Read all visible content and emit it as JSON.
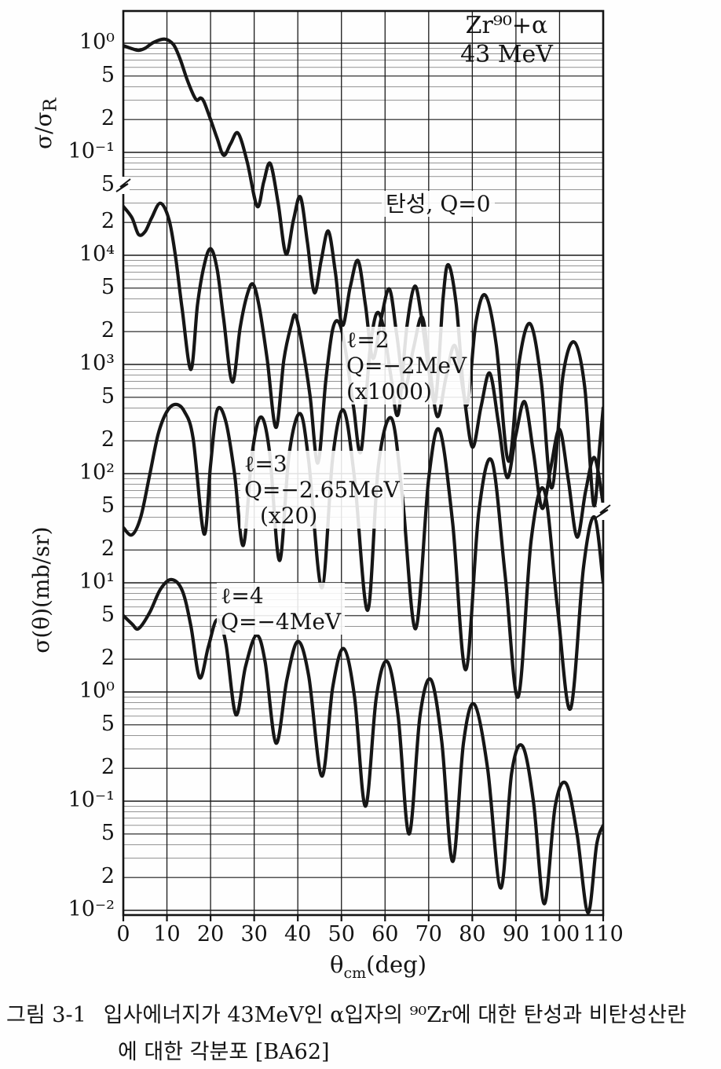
{
  "corner": {
    "line1": "Zr⁹⁰+α",
    "line2": "43 MeV"
  },
  "y_axis_top": {
    "label_main": "σ/σ",
    "label_sub": "R",
    "ticks": [
      {
        "text": "10⁰",
        "value": 1
      },
      {
        "text": "5",
        "value": 0.5
      },
      {
        "text": "2",
        "value": 0.2
      },
      {
        "text": "10⁻¹",
        "value": 0.1
      },
      {
        "text": "5",
        "value": 0.05,
        "axis_break": true
      }
    ]
  },
  "y_axis_bottom": {
    "label": "σ(θ)(mb/sr)",
    "ticks": [
      {
        "text": "2",
        "value": 20000
      },
      {
        "text": "10⁴",
        "value": 10000
      },
      {
        "text": "5",
        "value": 5000
      },
      {
        "text": "2",
        "value": 2000
      },
      {
        "text": "10³",
        "value": 1000
      },
      {
        "text": "5",
        "value": 500
      },
      {
        "text": "2",
        "value": 200
      },
      {
        "text": "10²",
        "value": 100
      },
      {
        "text": "5",
        "value": 50
      },
      {
        "text": "2",
        "value": 20
      },
      {
        "text": "10¹",
        "value": 10
      },
      {
        "text": "5",
        "value": 5
      },
      {
        "text": "2",
        "value": 2
      },
      {
        "text": "10⁰",
        "value": 1
      },
      {
        "text": "5",
        "value": 0.5
      },
      {
        "text": "2",
        "value": 0.2
      },
      {
        "text": "10⁻¹",
        "value": 0.1
      },
      {
        "text": "5",
        "value": 0.05
      },
      {
        "text": "2",
        "value": 0.02
      },
      {
        "text": "10⁻²",
        "value": 0.01
      }
    ]
  },
  "x_axis": {
    "ticks": [
      0,
      10,
      20,
      30,
      40,
      50,
      60,
      70,
      80,
      90,
      100,
      110
    ],
    "label_theta": "θ",
    "label_sub": "cm",
    "label_unit": "(deg)"
  },
  "curve_labels": {
    "elastic": {
      "line1": "탄성, Q=0"
    },
    "l2": {
      "line1": "ℓ=2",
      "line2": "Q=−2MeV",
      "line3": "(x1000)"
    },
    "l3": {
      "line1": "ℓ=3",
      "line2": "Q=−2.65MeV",
      "line3": "(x20)"
    },
    "l4": {
      "line1": "ℓ=4",
      "line2": "Q=−4MeV"
    }
  },
  "caption": {
    "tag": "그림 3-1",
    "line1": "입사에너지가 43MeV인 α입자의 ⁹⁰Zr에 대한 탄성과 비탄성산란",
    "line2": "에 대한 각분포 [BA62]"
  },
  "chart_data": {
    "type": "line",
    "xlabel": "theta_cm (deg)",
    "x_range": [
      0,
      110
    ],
    "grid": true,
    "y_scales": {
      "sigma_ratio": {
        "label": "sigma/sigma_R",
        "top_value": 1,
        "range": [
          0.05,
          1.2
        ]
      },
      "mb_sr": {
        "label": "sigma(theta) (mb/sr)",
        "range": [
          0.01,
          30000
        ]
      }
    },
    "series": [
      {
        "id": "elastic",
        "label": "탄성, Q=0",
        "scale": "sigma_ratio",
        "points": [
          [
            0,
            0.95
          ],
          [
            2,
            0.89
          ],
          [
            3.5,
            0.86
          ],
          [
            5,
            0.9
          ],
          [
            7,
            1.02
          ],
          [
            9.5,
            1.09
          ],
          [
            11.5,
            0.97
          ],
          [
            13,
            0.72
          ],
          [
            14.5,
            0.48
          ],
          [
            16,
            0.34
          ],
          [
            16.9,
            0.3
          ],
          [
            17.7,
            0.315
          ],
          [
            18.5,
            0.29
          ],
          [
            20,
            0.2
          ],
          [
            21.5,
            0.135
          ],
          [
            23,
            0.094
          ],
          [
            24.6,
            0.12
          ],
          [
            26.3,
            0.15
          ],
          [
            28.4,
            0.082
          ],
          [
            30.7,
            0.032
          ],
          [
            32.2,
            0.054
          ],
          [
            33.7,
            0.079
          ],
          [
            35.5,
            0.034
          ],
          [
            37.3,
            0.0117
          ],
          [
            39,
            0.024
          ],
          [
            40.6,
            0.039
          ],
          [
            42.2,
            0.015
          ],
          [
            43.8,
            0.0052
          ],
          [
            45.4,
            0.0105
          ],
          [
            47,
            0.019
          ],
          [
            48.6,
            0.008
          ],
          [
            50.2,
            0.0026
          ],
          [
            52,
            0.0058
          ],
          [
            53.8,
            0.0102
          ],
          [
            55.5,
            0.004
          ],
          [
            57.2,
            0.0013
          ],
          [
            59.1,
            0.003
          ],
          [
            61,
            0.0056
          ],
          [
            62.7,
            0.0021
          ],
          [
            64.5,
            0.0007
          ],
          [
            66.5,
            0.0016
          ],
          [
            68.5,
            0.0031
          ],
          [
            70.2,
            0.0011
          ],
          [
            72,
            0.00038
          ],
          [
            74,
            0.00088
          ],
          [
            76,
            0.0017
          ],
          [
            78,
            0.00062
          ],
          [
            80,
            0.0002
          ],
          [
            82,
            0.00047
          ],
          [
            84,
            0.00095
          ],
          [
            86,
            0.00033
          ],
          [
            88,
            0.000105
          ],
          [
            90,
            0.00026
          ],
          [
            92,
            0.00052
          ],
          [
            94,
            0.00018
          ],
          [
            96,
            5.5e-05
          ],
          [
            98,
            0.00013
          ],
          [
            100,
            0.00029
          ],
          [
            102,
            0.0001
          ],
          [
            104,
            3e-05
          ],
          [
            106,
            8e-05
          ],
          [
            108,
            0.00016
          ],
          [
            110,
            6e-05
          ]
        ]
      },
      {
        "id": "l2",
        "label": "ℓ=2, Q=−2MeV (x1000)",
        "scale": "mb_sr",
        "points": [
          [
            0,
            28000
          ],
          [
            2,
            22000
          ],
          [
            3.5,
            15500
          ],
          [
            5,
            16500
          ],
          [
            6.5,
            22000
          ],
          [
            8.5,
            30000
          ],
          [
            10.5,
            21000
          ],
          [
            12,
            9500
          ],
          [
            13.5,
            3200
          ],
          [
            15.5,
            900
          ],
          [
            17,
            3500
          ],
          [
            18.5,
            8000
          ],
          [
            20,
            11500
          ],
          [
            21.5,
            7500
          ],
          [
            23,
            2600
          ],
          [
            25,
            690
          ],
          [
            26.8,
            2200
          ],
          [
            28.5,
            4500
          ],
          [
            29.8,
            5400
          ],
          [
            31.2,
            3300
          ],
          [
            33,
            1100
          ],
          [
            35,
            265
          ],
          [
            36.8,
            1100
          ],
          [
            38.5,
            2300
          ],
          [
            39.5,
            2800
          ],
          [
            41,
            1500
          ],
          [
            42.8,
            520
          ],
          [
            44.6,
            125
          ],
          [
            46.4,
            700
          ],
          [
            48,
            2100
          ],
          [
            49.5,
            2400
          ],
          [
            51,
            1300
          ],
          [
            52.8,
            400
          ],
          [
            54.5,
            160
          ],
          [
            56.5,
            1300
          ],
          [
            58,
            2900
          ],
          [
            59.5,
            2300
          ],
          [
            61.3,
            800
          ],
          [
            63,
            350
          ],
          [
            65,
            2200
          ],
          [
            66.8,
            5200
          ],
          [
            68.3,
            2800
          ],
          [
            70,
            900
          ],
          [
            71.6,
            480
          ],
          [
            73.3,
            4000
          ],
          [
            74.5,
            8200
          ],
          [
            76.3,
            3600
          ],
          [
            78.6,
            420
          ],
          [
            80.8,
            2400
          ],
          [
            83,
            4300
          ],
          [
            85.5,
            1500
          ],
          [
            88.3,
            130
          ],
          [
            90.8,
            1100
          ],
          [
            93.3,
            2350
          ],
          [
            95.8,
            700
          ],
          [
            98.2,
            74
          ],
          [
            100.8,
            800
          ],
          [
            103.4,
            1600
          ],
          [
            105.8,
            600
          ],
          [
            107.8,
            52
          ],
          [
            109.2,
            180
          ],
          [
            110,
            400
          ]
        ]
      },
      {
        "id": "l3",
        "label": "ℓ=3, Q=−2.65MeV (x20)",
        "scale": "mb_sr",
        "points": [
          [
            0,
            32
          ],
          [
            2,
            27.5
          ],
          [
            4,
            40
          ],
          [
            6,
            95
          ],
          [
            8,
            230
          ],
          [
            10,
            370
          ],
          [
            12,
            430
          ],
          [
            14,
            370
          ],
          [
            16,
            210
          ],
          [
            18.5,
            28
          ],
          [
            20,
            120
          ],
          [
            21.5,
            380
          ],
          [
            23.5,
            300
          ],
          [
            25.5,
            100
          ],
          [
            27.5,
            22
          ],
          [
            29.5,
            150
          ],
          [
            31.5,
            330
          ],
          [
            33.5,
            160
          ],
          [
            35.8,
            16
          ],
          [
            38,
            150
          ],
          [
            40.5,
            355
          ],
          [
            42.5,
            130
          ],
          [
            45.5,
            9
          ],
          [
            48,
            140
          ],
          [
            50.5,
            380
          ],
          [
            53,
            90
          ],
          [
            56,
            5.6
          ],
          [
            58.5,
            120
          ],
          [
            61.5,
            320
          ],
          [
            64,
            60
          ],
          [
            67,
            3.8
          ],
          [
            70,
            90
          ],
          [
            72.5,
            250
          ],
          [
            75.5,
            35
          ],
          [
            78.5,
            1.6
          ],
          [
            81.5,
            45
          ],
          [
            84.5,
            130
          ],
          [
            87.5,
            12
          ],
          [
            90.5,
            0.9
          ],
          [
            93.5,
            25
          ],
          [
            96.5,
            70
          ],
          [
            99.5,
            6
          ],
          [
            102.5,
            0.7
          ],
          [
            105.5,
            14
          ],
          [
            108,
            40
          ],
          [
            110,
            10
          ]
        ]
      },
      {
        "id": "l4",
        "label": "ℓ=4, Q=−4MeV",
        "scale": "mb_sr",
        "points": [
          [
            0,
            5.0
          ],
          [
            2,
            4.2
          ],
          [
            3.5,
            3.8
          ],
          [
            6,
            5.3
          ],
          [
            8.5,
            8.7
          ],
          [
            11,
            10.7
          ],
          [
            13.5,
            8.5
          ],
          [
            15.5,
            4.0
          ],
          [
            17.5,
            1.35
          ],
          [
            19.5,
            2.6
          ],
          [
            21.5,
            4.6
          ],
          [
            23.5,
            2.8
          ],
          [
            25.8,
            0.62
          ],
          [
            28,
            1.7
          ],
          [
            30.5,
            3.3
          ],
          [
            32.5,
            1.9
          ],
          [
            35,
            0.34
          ],
          [
            37.5,
            1.3
          ],
          [
            40,
            2.9
          ],
          [
            42.5,
            1.4
          ],
          [
            45.5,
            0.17
          ],
          [
            48,
            1.1
          ],
          [
            50.5,
            2.5
          ],
          [
            53,
            0.9
          ],
          [
            55.5,
            0.09
          ],
          [
            58,
            0.9
          ],
          [
            60.5,
            1.9
          ],
          [
            63,
            0.6
          ],
          [
            65.5,
            0.05
          ],
          [
            68,
            0.6
          ],
          [
            70.5,
            1.3
          ],
          [
            73,
            0.35
          ],
          [
            75.5,
            0.028
          ],
          [
            78,
            0.35
          ],
          [
            80.5,
            0.77
          ],
          [
            83.5,
            0.2
          ],
          [
            86.5,
            0.016
          ],
          [
            89,
            0.18
          ],
          [
            91.5,
            0.32
          ],
          [
            94,
            0.1
          ],
          [
            96.5,
            0.0115
          ],
          [
            99,
            0.09
          ],
          [
            101.5,
            0.145
          ],
          [
            104,
            0.05
          ],
          [
            106.5,
            0.0095
          ],
          [
            108.5,
            0.04
          ],
          [
            110,
            0.06
          ]
        ]
      }
    ]
  }
}
